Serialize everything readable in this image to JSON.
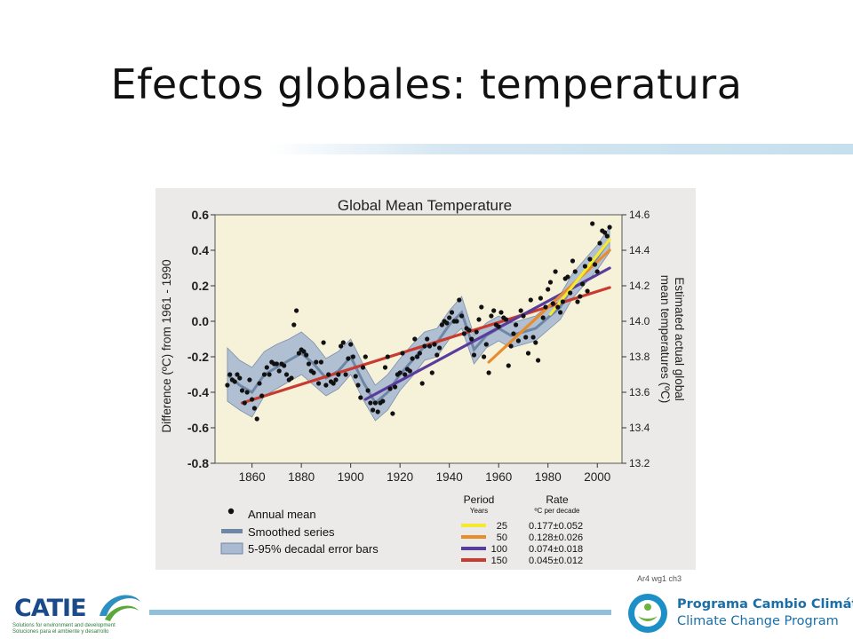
{
  "slide": {
    "title": "Efectos globales: temperatura",
    "source_note": "Ar4 wg1 ch3"
  },
  "footer": {
    "left_logo": {
      "name": "CATIE",
      "tagline_1": "Solutions for environment and development",
      "tagline_2": "Soluciones para el ambiente y desarrollo"
    },
    "right_logo": {
      "line1": "Programa Cambio Climático",
      "line2": "Climate Change Program"
    }
  },
  "colors": {
    "chart_background": "#eceae8",
    "band": "#a9bad1",
    "smoothed": "#6f87a6",
    "trend_25": "#f5ea2e",
    "trend_50": "#e98d2c",
    "trend_100": "#5a3c9c",
    "trend_150": "#c93a2f",
    "footer_rule": "#8fc1dd"
  },
  "chart_data": {
    "type": "scatter",
    "title": "Global Mean Temperature",
    "ylabel": "Difference (ºC) from 1961 - 1990",
    "ylabel_right": "Estimated actual global mean temperatures (ºC)",
    "xlim": [
      1845,
      2010
    ],
    "ylim": [
      -0.8,
      0.6
    ],
    "ylim_right": [
      13.2,
      14.6
    ],
    "x_ticks": [
      1860,
      1880,
      1900,
      1920,
      1940,
      1960,
      1980,
      2000
    ],
    "y_ticks": [
      0.6,
      0.4,
      0.2,
      0.0,
      -0.2,
      -0.4,
      -0.6,
      -0.8
    ],
    "y_tick_labels": [
      "0.6",
      "0.4",
      "0.2",
      "0.0",
      "-0.2",
      "-0.4",
      "-0.6",
      "-0.8"
    ],
    "y_right_ticks": [
      14.6,
      14.4,
      14.2,
      14.0,
      13.8,
      13.6,
      13.4,
      13.2
    ],
    "y_right_tick_labels": [
      "14.6",
      "14.4",
      "14.2",
      "14.0",
      "13.8",
      "13.6",
      "13.4",
      "13.2"
    ],
    "annual_mean": {
      "name": "Annual mean",
      "x": [
        1850,
        1851,
        1852,
        1853,
        1854,
        1855,
        1856,
        1857,
        1858,
        1859,
        1860,
        1861,
        1862,
        1863,
        1864,
        1865,
        1866,
        1867,
        1868,
        1869,
        1870,
        1871,
        1872,
        1873,
        1874,
        1875,
        1876,
        1877,
        1878,
        1879,
        1880,
        1881,
        1882,
        1883,
        1884,
        1885,
        1886,
        1887,
        1888,
        1889,
        1890,
        1891,
        1892,
        1893,
        1894,
        1895,
        1896,
        1897,
        1898,
        1899,
        1900,
        1901,
        1902,
        1903,
        1904,
        1905,
        1906,
        1907,
        1908,
        1909,
        1910,
        1911,
        1912,
        1913,
        1914,
        1915,
        1916,
        1917,
        1918,
        1919,
        1920,
        1921,
        1922,
        1923,
        1924,
        1925,
        1926,
        1927,
        1928,
        1929,
        1930,
        1931,
        1932,
        1933,
        1934,
        1935,
        1936,
        1937,
        1938,
        1939,
        1940,
        1941,
        1942,
        1943,
        1944,
        1945,
        1946,
        1947,
        1948,
        1949,
        1950,
        1951,
        1952,
        1953,
        1954,
        1955,
        1956,
        1957,
        1958,
        1959,
        1960,
        1961,
        1962,
        1963,
        1964,
        1965,
        1966,
        1967,
        1968,
        1969,
        1970,
        1971,
        1972,
        1973,
        1974,
        1975,
        1976,
        1977,
        1978,
        1979,
        1980,
        1981,
        1982,
        1983,
        1984,
        1985,
        1986,
        1987,
        1988,
        1989,
        1990,
        1991,
        1992,
        1993,
        1994,
        1995,
        1996,
        1997,
        1998,
        1999,
        2000,
        2001,
        2002,
        2003,
        2004,
        2005
      ],
      "y": [
        -0.36,
        -0.3,
        -0.33,
        -0.34,
        -0.3,
        -0.32,
        -0.39,
        -0.46,
        -0.4,
        -0.33,
        -0.44,
        -0.49,
        -0.55,
        -0.35,
        -0.42,
        -0.3,
        -0.26,
        -0.3,
        -0.23,
        -0.24,
        -0.24,
        -0.28,
        -0.24,
        -0.25,
        -0.3,
        -0.33,
        -0.32,
        -0.02,
        0.06,
        -0.18,
        -0.16,
        -0.17,
        -0.19,
        -0.24,
        -0.28,
        -0.29,
        -0.23,
        -0.35,
        -0.23,
        -0.12,
        -0.36,
        -0.3,
        -0.34,
        -0.35,
        -0.33,
        -0.3,
        -0.14,
        -0.12,
        -0.3,
        -0.21,
        -0.13,
        -0.2,
        -0.31,
        -0.36,
        -0.43,
        -0.26,
        -0.2,
        -0.39,
        -0.46,
        -0.5,
        -0.46,
        -0.51,
        -0.46,
        -0.45,
        -0.26,
        -0.2,
        -0.38,
        -0.52,
        -0.37,
        -0.3,
        -0.29,
        -0.18,
        -0.3,
        -0.27,
        -0.28,
        -0.21,
        -0.1,
        -0.2,
        -0.18,
        -0.35,
        -0.14,
        -0.1,
        -0.14,
        -0.29,
        -0.13,
        -0.19,
        -0.15,
        -0.02,
        0.0,
        -0.01,
        0.02,
        0.05,
        0.0,
        0.0,
        0.12,
        0.03,
        -0.07,
        -0.04,
        -0.05,
        -0.1,
        -0.19,
        -0.06,
        0.01,
        0.08,
        -0.2,
        -0.13,
        -0.29,
        0.03,
        0.06,
        -0.02,
        -0.03,
        0.05,
        0.02,
        0.01,
        -0.25,
        -0.14,
        -0.07,
        -0.02,
        -0.11,
        0.06,
        0.03,
        -0.09,
        -0.18,
        0.12,
        -0.09,
        -0.12,
        -0.22,
        0.13,
        0.02,
        0.08,
        0.18,
        0.22,
        0.1,
        0.28,
        0.08,
        0.05,
        0.11,
        0.24,
        0.25,
        0.16,
        0.34,
        0.28,
        0.11,
        0.14,
        0.21,
        0.31,
        0.17,
        0.35,
        0.55,
        0.32,
        0.28,
        0.44,
        0.51,
        0.5,
        0.48,
        0.53
      ]
    },
    "smoothed_series": {
      "name": "Smoothed series",
      "x": [
        1850,
        1855,
        1860,
        1865,
        1870,
        1875,
        1880,
        1885,
        1890,
        1895,
        1900,
        1905,
        1910,
        1915,
        1920,
        1925,
        1930,
        1935,
        1940,
        1945,
        1950,
        1955,
        1960,
        1965,
        1970,
        1975,
        1980,
        1985,
        1990,
        1995,
        2000,
        2005
      ],
      "y": [
        -0.3,
        -0.36,
        -0.4,
        -0.3,
        -0.26,
        -0.22,
        -0.18,
        -0.24,
        -0.32,
        -0.28,
        -0.2,
        -0.34,
        -0.46,
        -0.4,
        -0.3,
        -0.22,
        -0.14,
        -0.12,
        -0.02,
        0.05,
        -0.16,
        -0.08,
        -0.04,
        -0.08,
        -0.06,
        -0.04,
        0.02,
        0.08,
        0.2,
        0.28,
        0.36,
        0.46
      ]
    },
    "error_band": {
      "name": "5-95% decadal error bars",
      "x": [
        1850,
        1855,
        1860,
        1865,
        1870,
        1875,
        1880,
        1885,
        1890,
        1895,
        1900,
        1905,
        1910,
        1915,
        1920,
        1925,
        1930,
        1935,
        1940,
        1945,
        1950,
        1955,
        1960,
        1965,
        1970,
        1975,
        1980,
        1985,
        1990,
        1995,
        2000,
        2005
      ],
      "lower": [
        -0.45,
        -0.5,
        -0.54,
        -0.42,
        -0.38,
        -0.34,
        -0.3,
        -0.36,
        -0.42,
        -0.38,
        -0.3,
        -0.44,
        -0.56,
        -0.5,
        -0.39,
        -0.31,
        -0.22,
        -0.2,
        -0.1,
        -0.04,
        -0.24,
        -0.15,
        -0.11,
        -0.15,
        -0.13,
        -0.11,
        -0.05,
        0.01,
        0.13,
        0.21,
        0.29,
        0.39
      ],
      "upper": [
        -0.15,
        -0.22,
        -0.26,
        -0.17,
        -0.13,
        -0.1,
        -0.06,
        -0.12,
        -0.21,
        -0.17,
        -0.1,
        -0.24,
        -0.36,
        -0.3,
        -0.21,
        -0.13,
        -0.06,
        -0.04,
        0.06,
        0.14,
        -0.08,
        -0.01,
        0.03,
        -0.01,
        0.01,
        0.03,
        0.09,
        0.15,
        0.27,
        0.35,
        0.43,
        0.53
      ]
    },
    "trend_lines": [
      {
        "period": "25",
        "rate": "0.177±0.052",
        "x": [
          1981,
          2005
        ],
        "y": [
          0.04,
          0.46
        ]
      },
      {
        "period": "50",
        "rate": "0.128±0.026",
        "x": [
          1956,
          2005
        ],
        "y": [
          -0.23,
          0.4
        ]
      },
      {
        "period": "100",
        "rate": "0.074±0.018",
        "x": [
          1906,
          2005
        ],
        "y": [
          -0.44,
          0.3
        ]
      },
      {
        "period": "150",
        "rate": "0.045±0.012",
        "x": [
          1856,
          2005
        ],
        "y": [
          -0.46,
          0.19
        ]
      }
    ],
    "legend": {
      "annual_mean": "Annual mean",
      "smoothed": "Smoothed series",
      "error_bars": "5-95% decadal error bars",
      "period_header": "Period",
      "period_unit": "Years",
      "rate_header": "Rate",
      "rate_unit": "ºC  per decade"
    }
  }
}
